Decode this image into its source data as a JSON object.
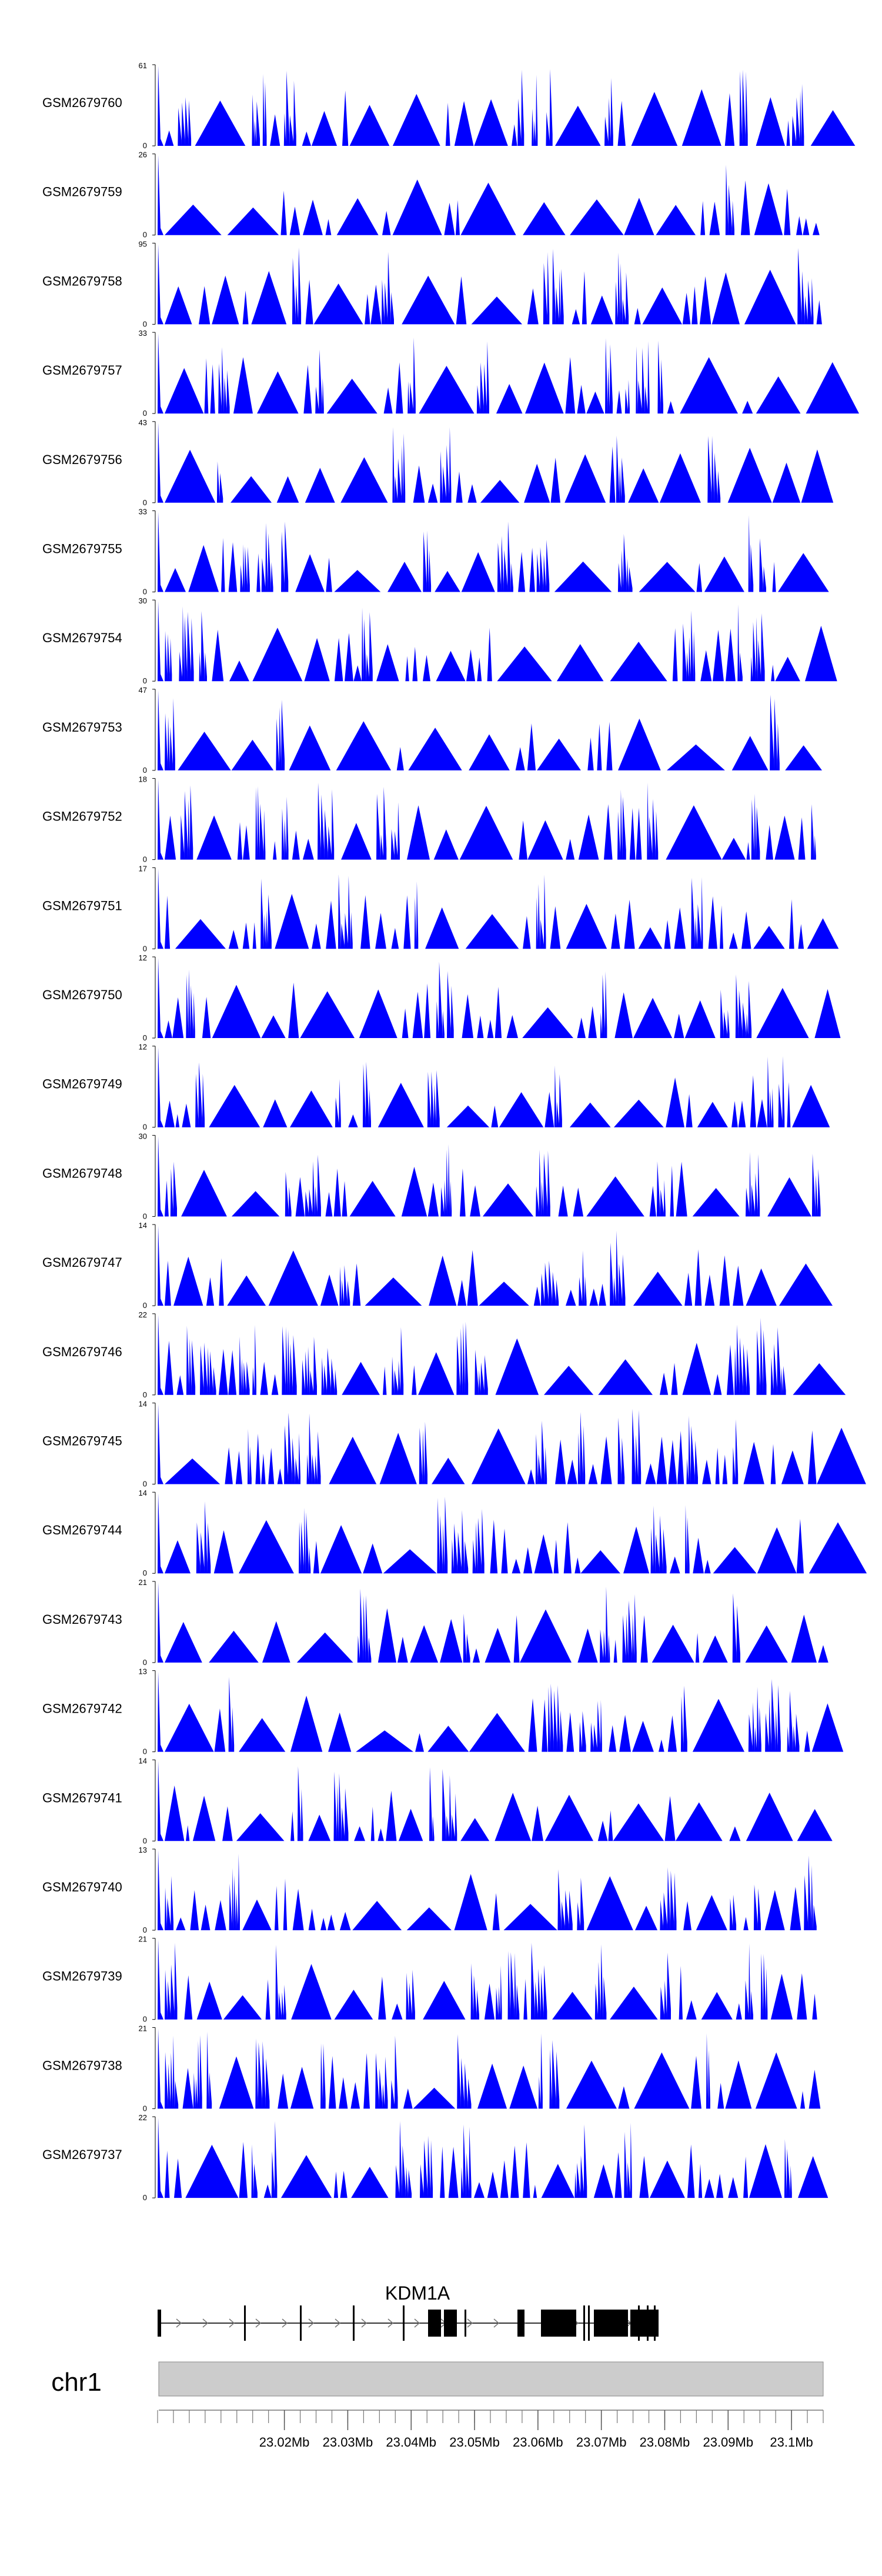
{
  "chart_data": {
    "type": "area",
    "title": "",
    "chromosome": "chr1",
    "gene": {
      "name": "KDM1A",
      "strand": "+"
    },
    "x_axis": {
      "unit": "Mb",
      "range": [
        23.0,
        23.105
      ],
      "ticks": [
        23.02,
        23.03,
        23.04,
        23.05,
        23.06,
        23.07,
        23.08,
        23.09,
        23.1
      ],
      "tick_labels": [
        "23.02Mb",
        "23.03Mb",
        "23.04Mb",
        "23.05Mb",
        "23.06Mb",
        "23.07Mb",
        "23.08Mb",
        "23.09Mb",
        "23.1Mb"
      ]
    },
    "series": [
      {
        "name": "GSM2679760",
        "ymax": 61,
        "ymin": 0
      },
      {
        "name": "GSM2679759",
        "ymax": 26,
        "ymin": 0
      },
      {
        "name": "GSM2679758",
        "ymax": 95,
        "ymin": 0
      },
      {
        "name": "GSM2679757",
        "ymax": 33,
        "ymin": 0
      },
      {
        "name": "GSM2679756",
        "ymax": 43,
        "ymin": 0
      },
      {
        "name": "GSM2679755",
        "ymax": 33,
        "ymin": 0
      },
      {
        "name": "GSM2679754",
        "ymax": 30,
        "ymin": 0
      },
      {
        "name": "GSM2679753",
        "ymax": 47,
        "ymin": 0
      },
      {
        "name": "GSM2679752",
        "ymax": 18,
        "ymin": 0
      },
      {
        "name": "GSM2679751",
        "ymax": 17,
        "ymin": 0
      },
      {
        "name": "GSM2679750",
        "ymax": 12,
        "ymin": 0
      },
      {
        "name": "GSM2679749",
        "ymax": 12,
        "ymin": 0
      },
      {
        "name": "GSM2679748",
        "ymax": 30,
        "ymin": 0
      },
      {
        "name": "GSM2679747",
        "ymax": 14,
        "ymin": 0
      },
      {
        "name": "GSM2679746",
        "ymax": 22,
        "ymin": 0
      },
      {
        "name": "GSM2679745",
        "ymax": 14,
        "ymin": 0
      },
      {
        "name": "GSM2679744",
        "ymax": 14,
        "ymin": 0
      },
      {
        "name": "GSM2679743",
        "ymax": 21,
        "ymin": 0
      },
      {
        "name": "GSM2679742",
        "ymax": 13,
        "ymin": 0
      },
      {
        "name": "GSM2679741",
        "ymax": 14,
        "ymin": 0
      },
      {
        "name": "GSM2679740",
        "ymax": 13,
        "ymin": 0
      },
      {
        "name": "GSM2679739",
        "ymax": 21,
        "ymin": 0
      },
      {
        "name": "GSM2679738",
        "ymax": 21,
        "ymin": 0
      },
      {
        "name": "GSM2679737",
        "ymax": 22,
        "ymin": 0
      }
    ],
    "colors": {
      "signal": "#0000ff",
      "ideogram": "#cccccc",
      "exon": "#000000"
    }
  }
}
